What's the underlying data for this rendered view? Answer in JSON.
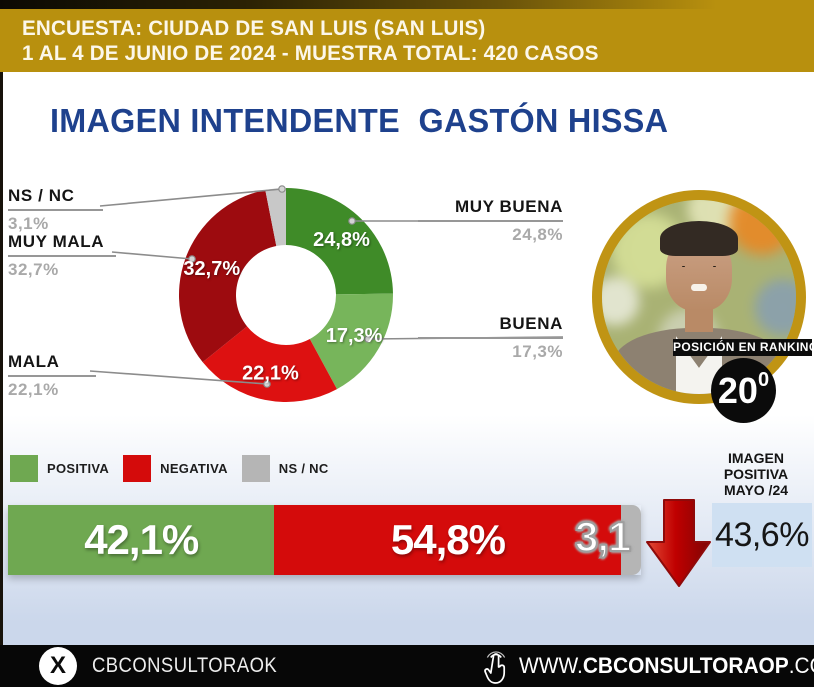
{
  "header": {
    "line1": "ENCUESTA: CIUDAD DE SAN LUIS (SAN LUIS)",
    "line2": "1 AL 4 DE JUNIO DE 2024 - MUESTRA TOTAL: 420 CASOS"
  },
  "title": "IMAGEN INTENDENTE  GASTÓN HISSA",
  "chart_data": {
    "type": "donut+stacked-bar",
    "donut": {
      "title": "IMAGEN INTENDENTE GASTÓN HISSA",
      "slices": [
        {
          "label": "MUY BUENA",
          "value": 24.8,
          "display": "24,8%",
          "color": "#3f8b28"
        },
        {
          "label": "BUENA",
          "value": 17.3,
          "display": "17,3%",
          "color": "#77b55b"
        },
        {
          "label": "MALA",
          "value": 22.1,
          "display": "22,1%",
          "color": "#dd1111"
        },
        {
          "label": "MUY MALA",
          "value": 32.7,
          "display": "32,7%",
          "color": "#9d0b0f"
        },
        {
          "label": "NS / NC",
          "value": 3.1,
          "display": "3,1%",
          "color": "#c8c8c8"
        }
      ],
      "start_angle_deg": -90,
      "direction": "clockwise"
    },
    "stacked_bar": {
      "segments": [
        {
          "label": "POSITIVA",
          "value": 42.1,
          "display": "42,1%",
          "color": "#6fa851"
        },
        {
          "label": "NEGATIVA",
          "value": 54.8,
          "display": "54,8%",
          "color": "#d40b0b"
        },
        {
          "label": "NS / NC",
          "value": 3.1,
          "display": "3,1",
          "color": "#b5b5b5"
        }
      ]
    },
    "comparison": {
      "label": "IMAGEN\nPOSITIVA\nMAYO /24",
      "value": 43.6,
      "display": "43,6%",
      "trend": "down",
      "box_color": "#cfe0f2",
      "arrow_color": "#c00000"
    }
  },
  "ranking": {
    "label": "POSICIÓN EN RANKING",
    "value": "20",
    "sup": "0"
  },
  "footer": {
    "handle": "CBCONSULTORAOK",
    "url_prefix": "WWW.",
    "url_brand": "CBCONSULTORAOP",
    "url_suffix": ".COM"
  },
  "colors": {
    "header_gold": "#b8900e",
    "title_navy": "#1e418d",
    "photo_ring_gold": "#c09414"
  }
}
